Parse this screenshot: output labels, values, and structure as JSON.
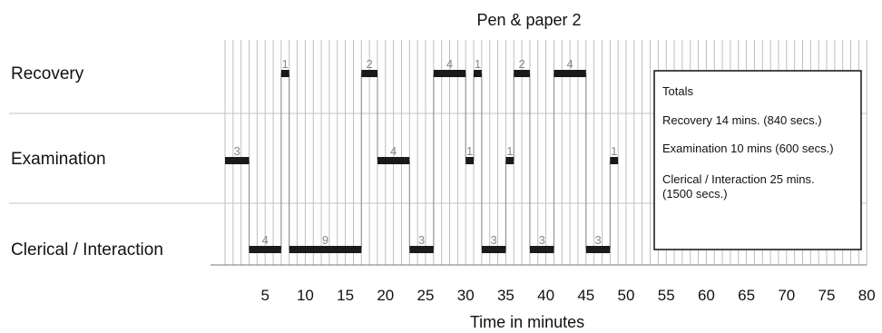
{
  "chart_data": {
    "type": "gantt",
    "title": "Pen & paper 2",
    "xlabel": "Time in minutes",
    "xlim": [
      0,
      80
    ],
    "xticks": [
      5,
      10,
      15,
      20,
      25,
      30,
      35,
      40,
      45,
      50,
      55,
      60,
      65,
      70,
      75,
      80
    ],
    "categories": [
      "Recovery",
      "Examination",
      "Clerical / Interaction"
    ],
    "segments": [
      {
        "category": "Examination",
        "start": 0,
        "end": 3,
        "label": "3"
      },
      {
        "category": "Clerical / Interaction",
        "start": 3,
        "end": 7,
        "label": "4"
      },
      {
        "category": "Recovery",
        "start": 7,
        "end": 8,
        "label": "1"
      },
      {
        "category": "Clerical / Interaction",
        "start": 8,
        "end": 17,
        "label": "9"
      },
      {
        "category": "Recovery",
        "start": 17,
        "end": 19,
        "label": "2"
      },
      {
        "category": "Examination",
        "start": 19,
        "end": 23,
        "label": "4"
      },
      {
        "category": "Clerical / Interaction",
        "start": 23,
        "end": 26,
        "label": "3"
      },
      {
        "category": "Recovery",
        "start": 26,
        "end": 30,
        "label": "4"
      },
      {
        "category": "Examination",
        "start": 30,
        "end": 31,
        "label": "1"
      },
      {
        "category": "Recovery",
        "start": 31,
        "end": 32,
        "label": "1"
      },
      {
        "category": "Clerical / Interaction",
        "start": 32,
        "end": 35,
        "label": "3"
      },
      {
        "category": "Examination",
        "start": 35,
        "end": 36,
        "label": "1"
      },
      {
        "category": "Recovery",
        "start": 36,
        "end": 38,
        "label": "2"
      },
      {
        "category": "Clerical / Interaction",
        "start": 38,
        "end": 41,
        "label": "3"
      },
      {
        "category": "Recovery",
        "start": 41,
        "end": 45,
        "label": "4"
      },
      {
        "category": "Clerical / Interaction",
        "start": 45,
        "end": 48,
        "label": "3"
      },
      {
        "category": "Examination",
        "start": 48,
        "end": 49,
        "label": "1"
      }
    ],
    "totals": {
      "heading": "Totals",
      "lines": [
        [
          "Recovery 14 mins. (840  secs.)"
        ],
        [
          "Examination 10 mins (600 secs.)"
        ],
        [
          "Clerical / Interaction 25 mins.",
          "(1500 secs.)"
        ]
      ]
    },
    "grid": true,
    "colors": {
      "bar": "#1a1a1a",
      "grid": "#b8b8b8",
      "label": "#888888"
    }
  }
}
